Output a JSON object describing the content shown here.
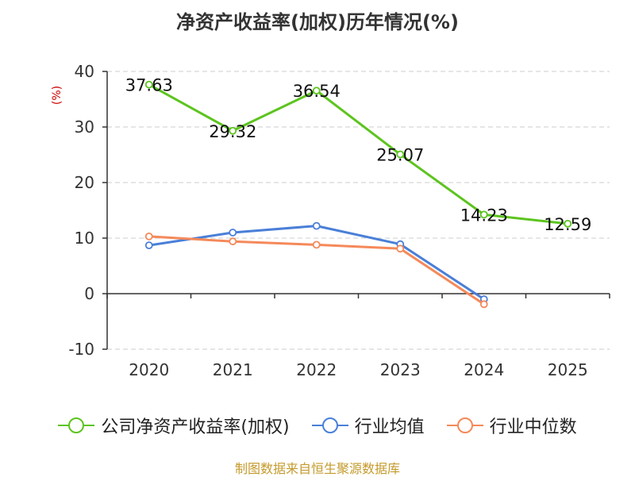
{
  "chart_data": {
    "type": "line",
    "title": "净资产收益率(加权)历年情况(%)",
    "ylabel": "(%)",
    "xlabel": "",
    "categories": [
      "2020",
      "2021",
      "2022",
      "2023",
      "2024",
      "2025"
    ],
    "ylim": [
      -10,
      40
    ],
    "yticks": [
      "40",
      "30",
      "20",
      "10",
      "0",
      "-10"
    ],
    "grid": true,
    "legend_position": "bottom",
    "series": [
      {
        "name": "公司净资产收益率(加权)",
        "color": "#5cc41e",
        "values": [
          37.63,
          29.32,
          36.54,
          25.07,
          14.23,
          12.59
        ],
        "labels": [
          "37.63",
          "29.32",
          "36.54",
          "25.07",
          "14.23",
          "12.59"
        ]
      },
      {
        "name": "行业均值",
        "color": "#4a7fd8",
        "values": [
          8.7,
          11.0,
          12.2,
          8.9,
          -1.0,
          null
        ]
      },
      {
        "name": "行业中位数",
        "color": "#f5895a",
        "values": [
          10.3,
          9.4,
          8.8,
          8.1,
          -1.9,
          null
        ]
      }
    ]
  },
  "source": "制图数据来自恒生聚源数据库"
}
